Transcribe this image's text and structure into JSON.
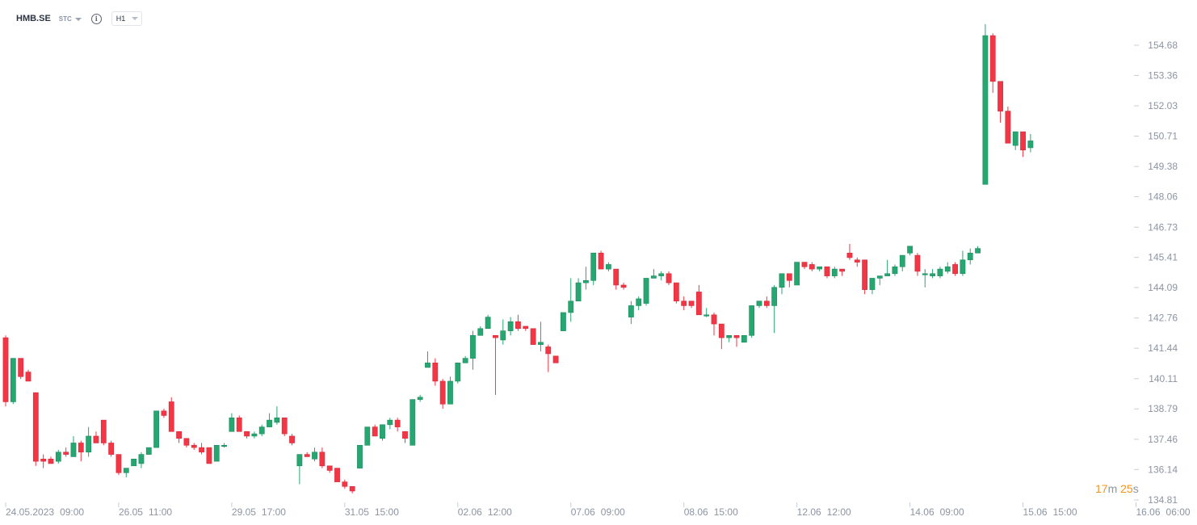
{
  "toolbar": {
    "symbol": "HMB.SE",
    "exchange": "STC",
    "info_icon": "info-icon",
    "timeframe": "H1"
  },
  "timer": {
    "minutes": "17",
    "m": "m",
    "seconds": "25",
    "s": "s"
  },
  "colors": {
    "up": "#26a671",
    "down": "#f23645",
    "grid": "#e9ecf0",
    "axis_text": "#8c94a2",
    "timer": "#f7931a"
  },
  "chart_data": {
    "type": "candlestick",
    "y_axis": {
      "ticks": [
        "154.68",
        "153.36",
        "152.03",
        "150.71",
        "149.38",
        "148.06",
        "146.73",
        "145.41",
        "144.09",
        "142.76",
        "141.44",
        "140.11",
        "138.79",
        "137.46",
        "136.14",
        "134.81"
      ],
      "range": [
        134.81,
        155.65
      ]
    },
    "x_axis": {
      "ticks": [
        [
          "24.05.2023",
          "09:00"
        ],
        [
          "26.05",
          "11:00"
        ],
        [
          "29.05",
          "17:00"
        ],
        [
          "31.05",
          "15:00"
        ],
        [
          "02.06",
          "12:00"
        ],
        [
          "07.06",
          "09:00"
        ],
        [
          "08.06",
          "15:00"
        ],
        [
          "12.06",
          "12:00"
        ],
        [
          "14.06",
          "09:00"
        ],
        [
          "15.06",
          "15:00"
        ],
        [
          "16.06",
          "06:00"
        ]
      ],
      "tick_indices": [
        0,
        15,
        30,
        45,
        60,
        75,
        90,
        105,
        120,
        135,
        150
      ]
    },
    "candles": [
      [
        141.9,
        139.1,
        142.0,
        138.9
      ],
      [
        139.1,
        141.0,
        141.0,
        139.0
      ],
      [
        141.0,
        140.2,
        141.0,
        140.1
      ],
      [
        140.4,
        140.0,
        140.5,
        140.0
      ],
      [
        139.5,
        136.5,
        139.5,
        136.3
      ],
      [
        136.6,
        136.5,
        136.8,
        136.2
      ],
      [
        136.6,
        136.4,
        136.7,
        136.4
      ],
      [
        136.5,
        136.9,
        137.0,
        136.4
      ],
      [
        136.9,
        136.8,
        137.1,
        136.7
      ],
      [
        136.7,
        137.3,
        137.6,
        136.7
      ],
      [
        137.3,
        136.9,
        137.4,
        136.5
      ],
      [
        136.9,
        137.6,
        138.0,
        136.7
      ],
      [
        137.6,
        137.3,
        137.8,
        137.3
      ],
      [
        138.3,
        137.3,
        138.3,
        137.2
      ],
      [
        137.3,
        136.8,
        137.4,
        136.7
      ],
      [
        136.8,
        136.0,
        136.8,
        135.9
      ],
      [
        136.0,
        136.2,
        136.2,
        135.8
      ],
      [
        136.3,
        136.6,
        136.6,
        136.3
      ],
      [
        136.4,
        136.8,
        136.9,
        136.2
      ],
      [
        136.8,
        137.1,
        137.1,
        136.8
      ],
      [
        137.1,
        138.7,
        138.7,
        137.1
      ],
      [
        138.7,
        138.5,
        138.8,
        138.4
      ],
      [
        139.1,
        137.8,
        139.3,
        137.8
      ],
      [
        137.8,
        137.5,
        137.8,
        137.3
      ],
      [
        137.5,
        137.2,
        137.5,
        137.1
      ],
      [
        137.2,
        137.1,
        137.3,
        137.0
      ],
      [
        137.1,
        136.9,
        137.3,
        136.8
      ],
      [
        137.1,
        136.4,
        137.1,
        136.4
      ],
      [
        136.5,
        137.2,
        137.2,
        136.5
      ],
      [
        137.2,
        137.2,
        137.3,
        137.1
      ],
      [
        137.8,
        138.4,
        138.6,
        137.8
      ],
      [
        138.4,
        137.8,
        138.5,
        137.8
      ],
      [
        137.8,
        137.6,
        137.8,
        137.5
      ],
      [
        137.6,
        137.7,
        137.8,
        137.5
      ],
      [
        137.7,
        138.0,
        138.1,
        137.6
      ],
      [
        138.0,
        138.3,
        138.6,
        138.0
      ],
      [
        138.2,
        138.4,
        138.9,
        138.1
      ],
      [
        138.4,
        137.7,
        138.4,
        137.6
      ],
      [
        137.6,
        137.3,
        137.7,
        137.2
      ],
      [
        136.3,
        136.8,
        136.8,
        135.5
      ],
      [
        136.8,
        136.7,
        136.9,
        136.7
      ],
      [
        136.6,
        136.9,
        137.1,
        136.5
      ],
      [
        136.9,
        136.3,
        137.1,
        136.2
      ],
      [
        136.3,
        136.1,
        136.3,
        136.0
      ],
      [
        136.2,
        135.6,
        136.2,
        135.6
      ],
      [
        135.6,
        135.4,
        135.7,
        135.3
      ],
      [
        135.4,
        135.2,
        135.4,
        135.1
      ],
      [
        136.2,
        137.2,
        137.2,
        136.2
      ],
      [
        137.2,
        138.0,
        138.0,
        137.2
      ],
      [
        138.0,
        137.6,
        138.1,
        137.6
      ],
      [
        137.5,
        138.1,
        138.1,
        137.4
      ],
      [
        138.1,
        138.3,
        138.4,
        137.9
      ],
      [
        138.3,
        138.0,
        138.4,
        137.8
      ],
      [
        137.8,
        137.5,
        137.8,
        137.3
      ],
      [
        137.2,
        139.2,
        139.2,
        137.2
      ],
      [
        139.2,
        139.3,
        139.4,
        139.1
      ],
      [
        140.6,
        140.8,
        141.3,
        140.6
      ],
      [
        140.8,
        140.0,
        141.0,
        139.8
      ],
      [
        140.0,
        139.0,
        140.1,
        138.8
      ],
      [
        139.0,
        140.0,
        140.2,
        139.0
      ],
      [
        140.0,
        140.8,
        140.8,
        139.9
      ],
      [
        140.8,
        141.0,
        141.1,
        140.8
      ],
      [
        141.0,
        142.0,
        142.2,
        140.5
      ],
      [
        142.0,
        142.3,
        142.4,
        142.0
      ],
      [
        142.3,
        142.8,
        142.9,
        142.3
      ],
      [
        142.0,
        141.9,
        142.0,
        139.4
      ],
      [
        141.8,
        142.2,
        142.7,
        141.6
      ],
      [
        142.2,
        142.6,
        142.8,
        142.0
      ],
      [
        142.6,
        142.3,
        142.9,
        142.2
      ],
      [
        142.4,
        142.3,
        142.4,
        142.2
      ],
      [
        142.3,
        141.6,
        142.3,
        141.6
      ],
      [
        141.6,
        141.7,
        142.6,
        141.3
      ],
      [
        141.5,
        141.2,
        141.6,
        140.4
      ],
      [
        141.1,
        140.8,
        141.1,
        140.8
      ],
      [
        142.2,
        143.0,
        143.0,
        142.2
      ],
      [
        143.0,
        143.5,
        144.5,
        142.6
      ],
      [
        143.5,
        144.3,
        144.5,
        143.5
      ],
      [
        144.3,
        144.4,
        145.0,
        144.0
      ],
      [
        144.4,
        145.6,
        145.6,
        144.2
      ],
      [
        145.6,
        144.9,
        145.7,
        144.9
      ],
      [
        144.9,
        145.1,
        145.2,
        144.8
      ],
      [
        144.9,
        144.2,
        144.9,
        144.0
      ],
      [
        144.2,
        144.1,
        144.3,
        144.0
      ],
      [
        142.8,
        143.3,
        143.5,
        142.5
      ],
      [
        143.3,
        143.6,
        143.7,
        143.1
      ],
      [
        143.4,
        144.5,
        144.5,
        143.3
      ],
      [
        144.5,
        144.6,
        144.9,
        144.5
      ],
      [
        144.6,
        144.7,
        144.8,
        144.4
      ],
      [
        144.7,
        144.3,
        144.8,
        144.2
      ],
      [
        144.3,
        143.5,
        144.3,
        143.4
      ],
      [
        143.5,
        143.3,
        143.7,
        143.1
      ],
      [
        143.5,
        143.3,
        143.5,
        143.2
      ],
      [
        143.9,
        142.9,
        144.2,
        142.9
      ],
      [
        142.9,
        142.9,
        143.2,
        142.8
      ],
      [
        142.9,
        142.5,
        143.0,
        142.0
      ],
      [
        142.5,
        141.9,
        142.5,
        141.4
      ],
      [
        141.9,
        142.0,
        142.0,
        141.7
      ],
      [
        142.0,
        141.9,
        142.0,
        141.5
      ],
      [
        141.7,
        142.0,
        142.0,
        141.7
      ],
      [
        142.0,
        143.3,
        143.3,
        141.9
      ],
      [
        143.3,
        143.5,
        143.5,
        143.2
      ],
      [
        143.5,
        143.3,
        143.7,
        143.2
      ],
      [
        143.3,
        144.1,
        144.2,
        142.1
      ],
      [
        144.1,
        144.7,
        144.7,
        143.8
      ],
      [
        144.7,
        144.4,
        144.7,
        144.1
      ],
      [
        144.2,
        145.2,
        145.2,
        144.2
      ],
      [
        145.2,
        145.0,
        145.2,
        144.9
      ],
      [
        145.1,
        144.9,
        145.2,
        144.8
      ],
      [
        144.9,
        145.0,
        145.0,
        144.8
      ],
      [
        145.0,
        144.6,
        145.0,
        144.5
      ],
      [
        144.6,
        144.9,
        145.0,
        144.5
      ],
      [
        144.9,
        144.8,
        144.9,
        144.6
      ],
      [
        145.6,
        145.4,
        146.0,
        145.3
      ],
      [
        145.3,
        145.2,
        145.4,
        145.0
      ],
      [
        145.3,
        144.0,
        145.3,
        143.8
      ],
      [
        144.0,
        144.5,
        144.5,
        143.8
      ],
      [
        144.5,
        144.6,
        144.6,
        144.2
      ],
      [
        144.6,
        144.7,
        145.3,
        144.6
      ],
      [
        144.7,
        145.0,
        145.1,
        144.6
      ],
      [
        145.0,
        145.5,
        145.5,
        144.8
      ],
      [
        145.6,
        145.9,
        145.9,
        145.5
      ],
      [
        145.5,
        144.8,
        145.6,
        144.6
      ],
      [
        144.7,
        144.7,
        144.9,
        144.1
      ],
      [
        144.6,
        144.7,
        144.9,
        144.5
      ],
      [
        144.6,
        144.9,
        145.0,
        144.5
      ],
      [
        144.8,
        145.0,
        145.2,
        144.7
      ],
      [
        145.1,
        144.7,
        145.2,
        144.6
      ],
      [
        144.7,
        145.3,
        145.7,
        144.6
      ],
      [
        145.3,
        145.6,
        145.8,
        145.1
      ],
      [
        145.6,
        145.8,
        145.9,
        145.6
      ],
      [
        148.6,
        155.1,
        155.6,
        148.6
      ],
      [
        155.1,
        153.1,
        155.2,
        152.6
      ],
      [
        153.1,
        151.8,
        153.1,
        151.3
      ],
      [
        151.8,
        150.4,
        152.0,
        150.4
      ],
      [
        150.3,
        150.9,
        150.9,
        150.1
      ],
      [
        150.9,
        150.1,
        150.9,
        149.8
      ],
      [
        150.2,
        150.5,
        150.8,
        150.0
      ]
    ]
  }
}
